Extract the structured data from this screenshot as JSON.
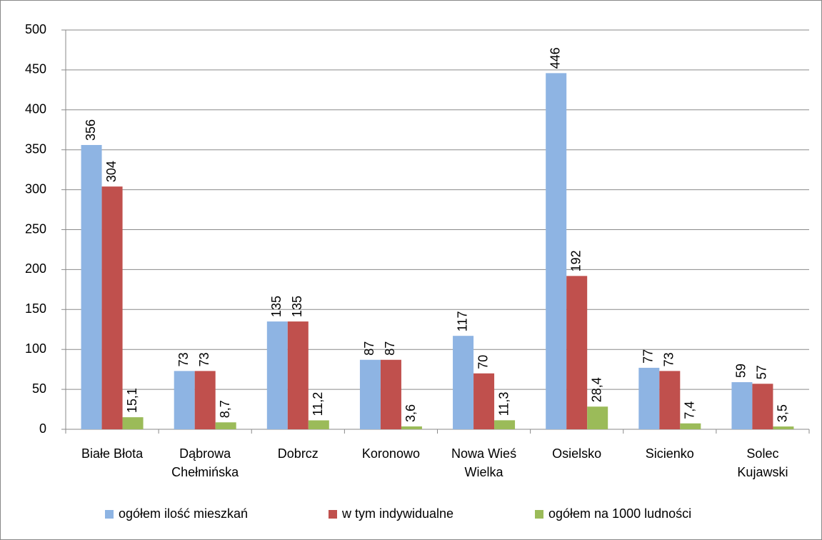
{
  "chart_data": {
    "type": "bar",
    "categories": [
      "Białe Błota",
      "Dąbrowa Chełmińska",
      "Dobrcz",
      "Koronowo",
      "Nowa Wieś Wielka",
      "Osielsko",
      "Sicienko",
      "Solec Kujawski"
    ],
    "series": [
      {
        "name": "ogółem ilość mieszkań",
        "color": "#8EB4E3",
        "values": [
          356,
          73,
          135,
          87,
          117,
          446,
          77,
          59
        ]
      },
      {
        "name": "w tym indywidualne",
        "color": "#C0504D",
        "values": [
          304,
          73,
          135,
          87,
          70,
          192,
          73,
          57
        ]
      },
      {
        "name": "ogółem na 1000 ludności",
        "color": "#9BBB59",
        "values": [
          15.1,
          8.7,
          11.2,
          3.6,
          11.3,
          28.4,
          7.4,
          3.5
        ],
        "value_labels": [
          "15,1",
          "8,7",
          "11,2",
          "3,6",
          "11,3",
          "28,4",
          "7,4",
          "3,5"
        ]
      }
    ],
    "ylim": [
      0,
      500
    ],
    "yticks": [
      0,
      50,
      100,
      150,
      200,
      250,
      300,
      350,
      400,
      450,
      500
    ],
    "grid": true,
    "legend": "bottom"
  }
}
